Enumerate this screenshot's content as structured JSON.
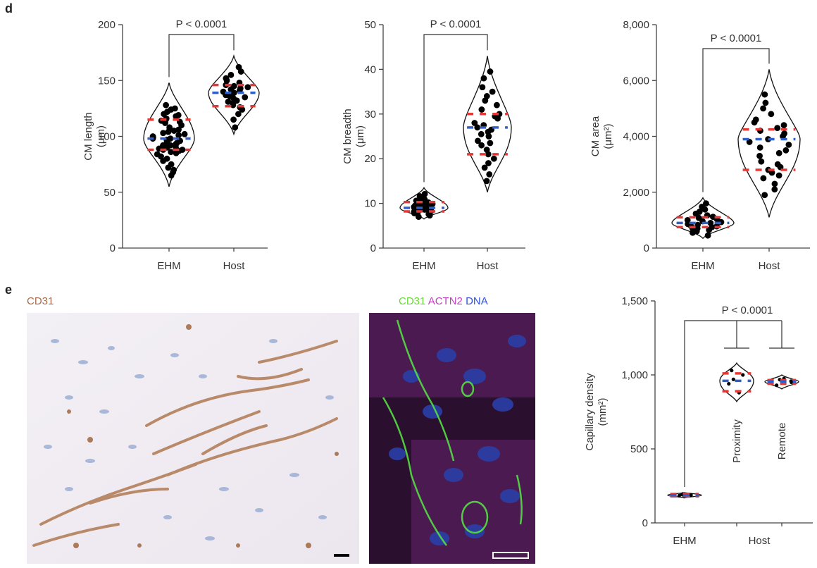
{
  "panels": {
    "d": "d",
    "e": "e"
  },
  "micrographs": {
    "ihc": {
      "stain": "CD31",
      "stain_color": "#a86a4a"
    },
    "if": {
      "stains": [
        {
          "text": "CD31",
          "color": "#66dd33"
        },
        {
          "text": "ACTN2",
          "color": "#c040c0"
        },
        {
          "text": "DNA",
          "color": "#3050e0"
        }
      ]
    }
  },
  "colors": {
    "point": "#000000",
    "quartile": "#e53935",
    "median": "#2f5fc9",
    "outline": "#111111"
  },
  "chart_data": [
    {
      "type": "violin",
      "ylabel": [
        "CM length",
        "(μm)"
      ],
      "ylim": [
        0,
        200
      ],
      "yticks": [
        0,
        50,
        100,
        150,
        200
      ],
      "ytick_labels": [
        "0",
        "50",
        "100",
        "150",
        "200"
      ],
      "categories": [
        "EHM",
        "Host"
      ],
      "pvalue": "P < 0.0001",
      "groups": [
        {
          "name": "EHM",
          "min": 55,
          "max": 148,
          "median": 98,
          "q1": 88,
          "q3": 115,
          "points": [
            72,
            75,
            78,
            80,
            82,
            84,
            85,
            86,
            87,
            88,
            88,
            89,
            90,
            90,
            91,
            92,
            92,
            93,
            94,
            95,
            96,
            97,
            98,
            98,
            99,
            100,
            101,
            102,
            103,
            104,
            105,
            106,
            107,
            108,
            110,
            112,
            113,
            114,
            115,
            116,
            118,
            119,
            120,
            122,
            124,
            125,
            128,
            65,
            68,
            70
          ]
        },
        {
          "name": "Host",
          "min": 102,
          "max": 172,
          "median": 139,
          "q1": 127,
          "q3": 146,
          "points": [
            108,
            115,
            120,
            124,
            126,
            128,
            130,
            132,
            134,
            135,
            136,
            137,
            138,
            139,
            140,
            141,
            142,
            143,
            144,
            145,
            146,
            148,
            150,
            152,
            155,
            158,
            162,
            131
          ]
        }
      ]
    },
    {
      "type": "violin",
      "ylabel": [
        "CM breadth",
        "(μm)"
      ],
      "ylim": [
        0,
        50
      ],
      "yticks": [
        0,
        10,
        20,
        30,
        40,
        50
      ],
      "ytick_labels": [
        "0",
        "10",
        "20",
        "30",
        "40",
        "50"
      ],
      "categories": [
        "EHM",
        "Host"
      ],
      "pvalue": "P < 0.0001",
      "groups": [
        {
          "name": "EHM",
          "min": 6.5,
          "max": 13.5,
          "median": 9,
          "q1": 8.2,
          "q3": 10.3,
          "points": [
            7,
            7.3,
            7.6,
            7.8,
            8,
            8.1,
            8.3,
            8.5,
            8.6,
            8.8,
            9,
            9.1,
            9.2,
            9.4,
            9.5,
            9.7,
            9.9,
            10,
            10.2,
            10.4,
            10.6,
            10.9,
            11.2,
            11.6,
            12.1,
            8.4,
            9.6
          ]
        },
        {
          "name": "Host",
          "min": 12.5,
          "max": 43,
          "median": 27,
          "q1": 21,
          "q3": 30,
          "points": [
            15,
            16.5,
            18,
            19,
            20,
            21,
            22,
            23,
            24,
            25,
            25.5,
            26,
            27,
            27.5,
            28,
            29,
            30,
            31,
            32,
            33,
            34,
            35,
            36,
            38,
            39.5,
            23.5,
            26.5,
            29.5
          ]
        }
      ]
    },
    {
      "type": "violin",
      "ylabel": [
        "CM area",
        "(μm²)"
      ],
      "ylim": [
        0,
        8000
      ],
      "yticks": [
        0,
        2000,
        4000,
        6000,
        8000
      ],
      "ytick_labels": [
        "0",
        "2,000",
        "4,000",
        "6,000",
        "8,000"
      ],
      "categories": [
        "EHM",
        "Host"
      ],
      "pvalue": "P < 0.0001",
      "groups": [
        {
          "name": "EHM",
          "min": 350,
          "max": 1800,
          "median": 900,
          "q1": 750,
          "q3": 1100,
          "points": [
            450,
            550,
            600,
            650,
            700,
            720,
            750,
            780,
            800,
            830,
            860,
            900,
            930,
            960,
            1000,
            1040,
            1080,
            1120,
            1170,
            1230,
            1300,
            1380,
            1480,
            1600
          ]
        },
        {
          "name": "Host",
          "min": 1100,
          "max": 6400,
          "median": 3900,
          "q1": 2800,
          "q3": 4250,
          "points": [
            1900,
            2100,
            2300,
            2500,
            2600,
            2700,
            2800,
            2900,
            3000,
            3100,
            3300,
            3400,
            3500,
            3600,
            3700,
            3800,
            3900,
            4000,
            4100,
            4200,
            4300,
            4400,
            4500,
            4600,
            4800,
            5000,
            5200,
            5500
          ]
        }
      ]
    },
    {
      "type": "violin",
      "ylabel": [
        "Capillary density",
        "(mm²)"
      ],
      "ylim": [
        0,
        1500
      ],
      "yticks": [
        0,
        500,
        1000,
        1500
      ],
      "ytick_labels": [
        "0",
        "500",
        "1,000",
        "1,500"
      ],
      "categories": [
        "EHM",
        "Host"
      ],
      "pvalue": "P < 0.0001",
      "groups": [
        {
          "name": "EHM",
          "min": 170,
          "max": 205,
          "median": 187,
          "q1": 180,
          "q3": 195,
          "points": [
            178,
            184,
            188,
            192,
            196
          ]
        },
        {
          "name": "Proximity",
          "min": 820,
          "max": 1080,
          "median": 960,
          "q1": 890,
          "q3": 1010,
          "points": [
            880,
            940,
            970,
            1000,
            1030
          ]
        },
        {
          "name": "Remote",
          "min": 905,
          "max": 1000,
          "median": 955,
          "q1": 940,
          "q3": 965,
          "points": [
            930,
            950,
            958,
            968,
            975
          ]
        }
      ]
    }
  ]
}
